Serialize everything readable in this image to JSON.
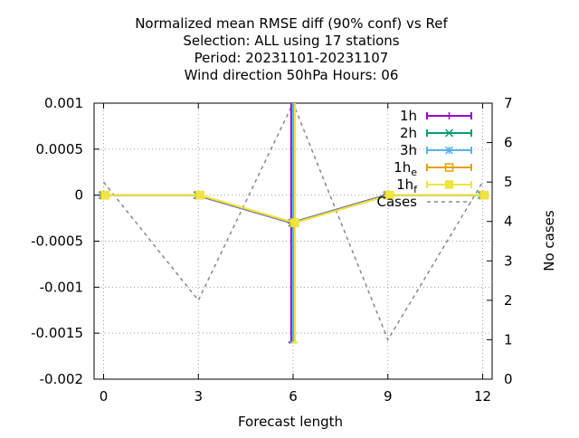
{
  "chart_data": {
    "type": "line",
    "title_lines": [
      "Normalized mean RMSE diff (90% conf) vs Ref",
      "Selection: ALL using    17 stations",
      "Period: 20231101-20231107",
      "Wind direction 50hPa   Hours:  06"
    ],
    "xlabel": "Forecast length",
    "ylabel": "",
    "y2label": "No cases",
    "xlim": [
      -0.3,
      12.3
    ],
    "ylim": [
      -0.002,
      0.001
    ],
    "y2lim": [
      0,
      7
    ],
    "xticks": [
      0,
      3,
      6,
      9,
      12
    ],
    "yticks": [
      {
        "value": 0.001,
        "label": "0.001"
      },
      {
        "value": 0.0005,
        "label": "0.0005"
      },
      {
        "value": 0,
        "label": "0"
      },
      {
        "value": -0.0005,
        "label": "-0.0005"
      },
      {
        "value": -0.001,
        "label": "-0.001"
      },
      {
        "value": -0.0015,
        "label": "-0.0015"
      },
      {
        "value": -0.002,
        "label": "-0.002"
      }
    ],
    "y2ticks": [
      0,
      1,
      2,
      3,
      4,
      5,
      6,
      7
    ],
    "grid": true,
    "legend_position": "top-right",
    "series": [
      {
        "name": "1h",
        "name_sub": "",
        "color": "#9400d3",
        "marker": "plus",
        "offset": -0.24,
        "x": [
          0,
          3,
          6,
          9,
          12
        ],
        "y": [
          0,
          0,
          -0.0003,
          0,
          0
        ],
        "err_low": [
          0,
          0,
          -0.0016,
          0,
          0
        ],
        "err_high": [
          0,
          0,
          0.001,
          0,
          0
        ]
      },
      {
        "name": "2h",
        "name_sub": "",
        "color": "#009e73",
        "marker": "cross",
        "offset": -0.12,
        "x": [
          0,
          3,
          6,
          9,
          12
        ],
        "y": [
          0,
          0,
          -0.0003,
          0,
          0
        ],
        "err_low": [
          0,
          0,
          -0.0016,
          0,
          0
        ],
        "err_high": [
          0,
          0,
          0.001,
          0,
          0
        ]
      },
      {
        "name": "3h",
        "name_sub": "",
        "color": "#56b4e9",
        "marker": "star",
        "offset": 0,
        "x": [
          0,
          3,
          6,
          9,
          12
        ],
        "y": [
          0,
          0,
          -0.0003,
          0,
          0
        ],
        "err_low": [
          0,
          0,
          -0.0016,
          0,
          0
        ],
        "err_high": [
          0,
          0,
          0.001,
          0,
          0
        ]
      },
      {
        "name": "1h",
        "name_sub": "e",
        "color": "#e69f00",
        "marker": "square",
        "offset": 0.12,
        "x": [
          0,
          3,
          6,
          9,
          12
        ],
        "y": [
          0,
          0,
          -0.0003,
          0,
          0
        ],
        "err_low": [
          0,
          0,
          -0.0016,
          0,
          0
        ],
        "err_high": [
          0,
          0,
          0.001,
          0,
          0
        ]
      },
      {
        "name": "1h",
        "name_sub": "f",
        "color": "#f0e442",
        "marker": "filled-square",
        "offset": 0.24,
        "x": [
          0,
          3,
          6,
          9,
          12
        ],
        "y": [
          0,
          0,
          -0.0003,
          0,
          0
        ],
        "err_low": [
          0,
          0,
          -0.0016,
          0,
          0
        ],
        "err_high": [
          0,
          0,
          0.001,
          0,
          0
        ]
      }
    ],
    "cases": {
      "name": "Cases",
      "color": "#888888",
      "axis": "y2",
      "x": [
        0,
        3,
        6,
        9,
        12
      ],
      "y": [
        5,
        2,
        7,
        1,
        5
      ]
    }
  }
}
